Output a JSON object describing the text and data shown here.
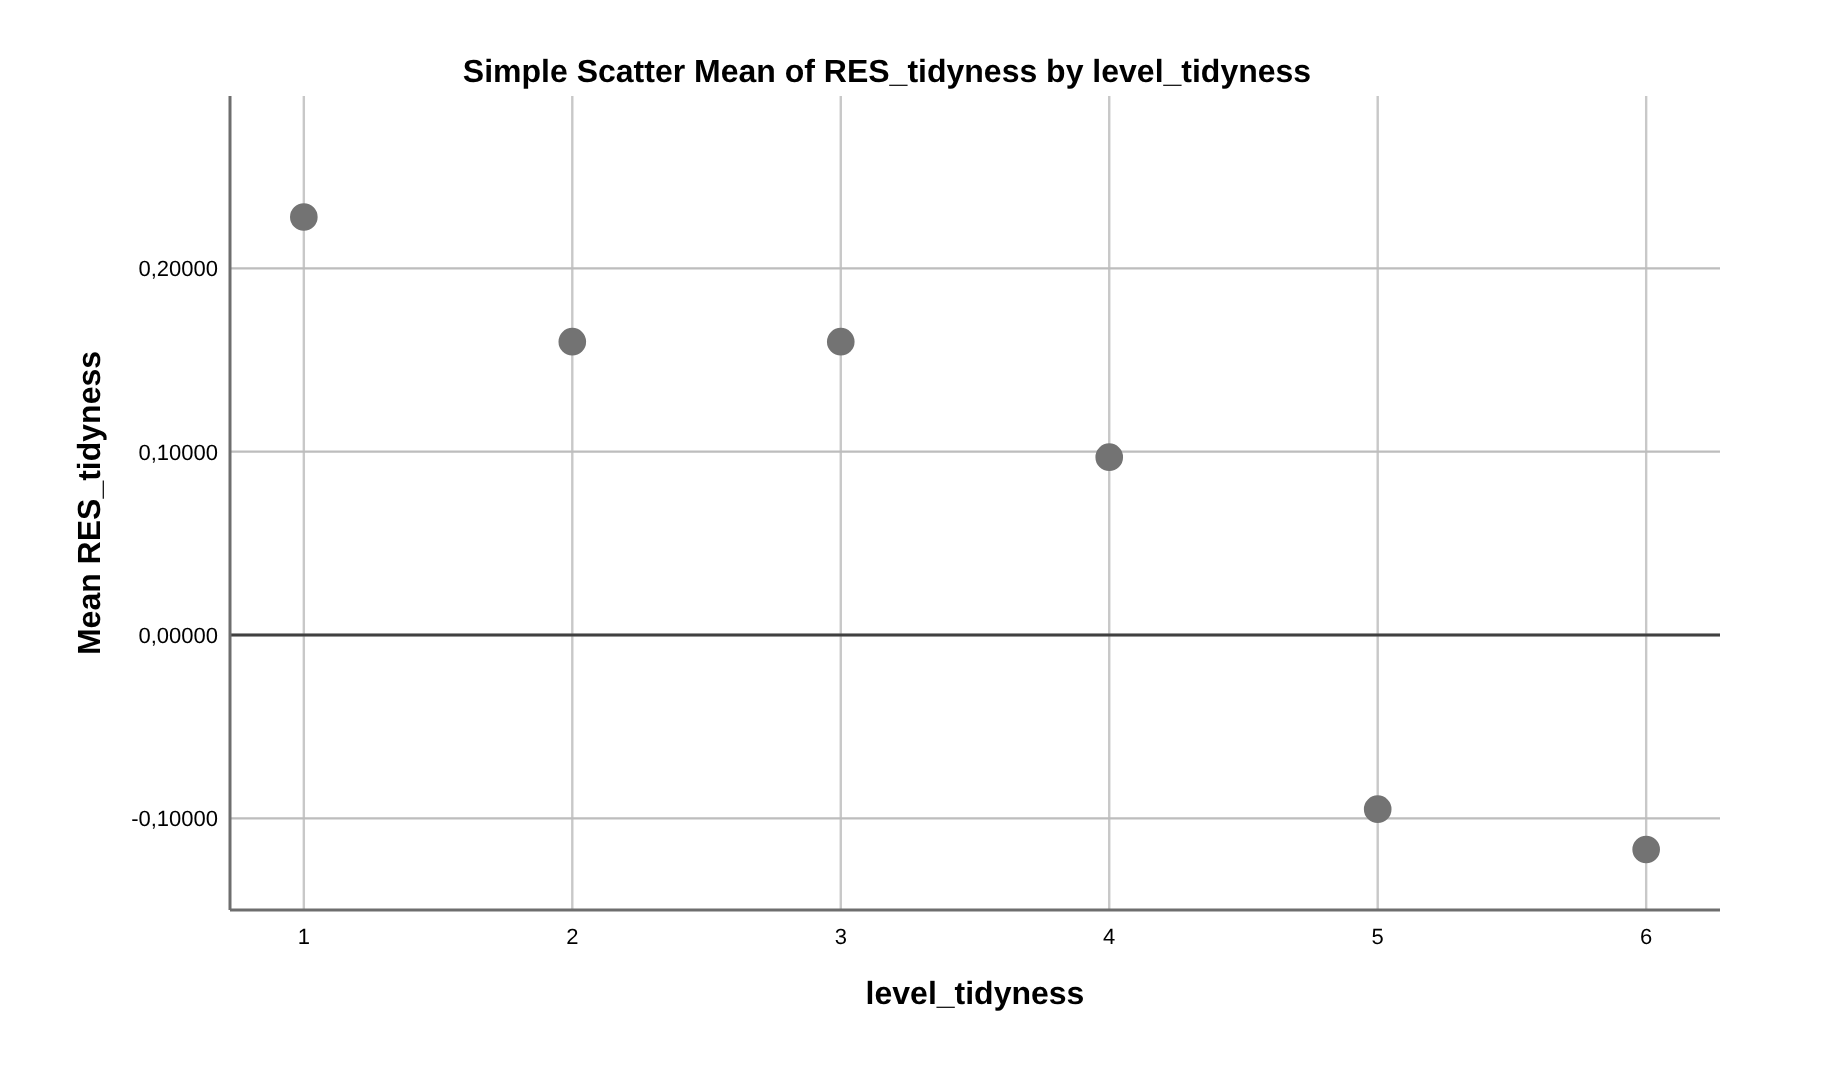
{
  "chart_data": {
    "type": "scatter",
    "title": "Simple Scatter Mean of RES_tidyness by level_tidyness",
    "xlabel": "level_tidyness",
    "ylabel": "Mean RES_tidyness",
    "x": [
      1,
      2,
      3,
      4,
      5,
      6
    ],
    "series": [
      {
        "color": "#737373",
        "values": [
          0.228,
          0.16,
          0.16,
          0.097,
          -0.095,
          -0.117
        ]
      }
    ],
    "xlim": [
      0.725,
      6.275
    ],
    "xticks": [
      1,
      2,
      3,
      4,
      5,
      6
    ],
    "ylim": [
      -0.15,
      0.294
    ],
    "yticks": [
      {
        "value": -0.1,
        "label": "-0,10000"
      },
      {
        "value": 0,
        "label": "0,00000"
      },
      {
        "value": 0.1,
        "label": "0,10000"
      },
      {
        "value": 0.2,
        "label": "0,20000"
      }
    ],
    "ref_lines": [
      {
        "axis": "y",
        "value": 0,
        "color": "#404040"
      }
    ],
    "grid": true,
    "marker": "circle"
  }
}
